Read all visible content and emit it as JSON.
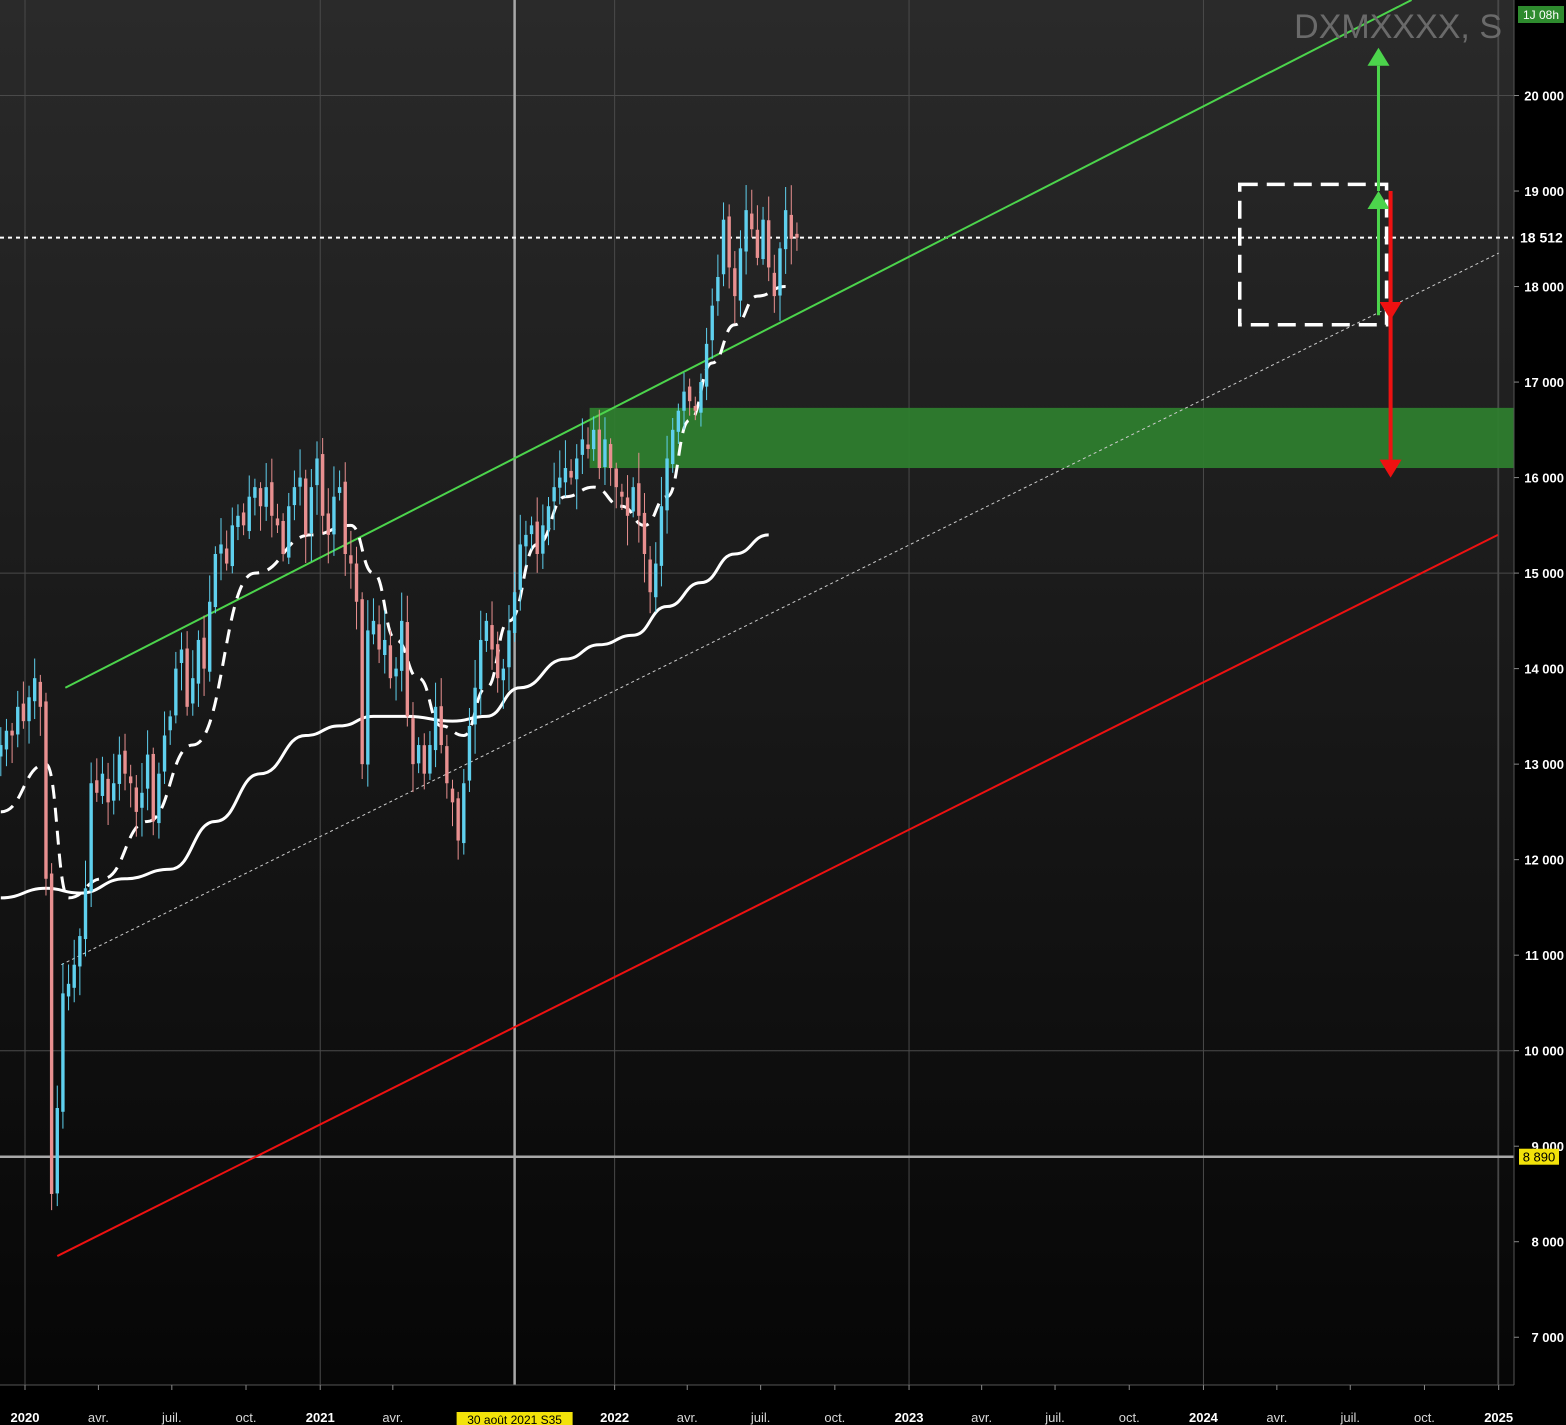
{
  "chart_data": {
    "type": "candlestick",
    "title": "DXMXXXX, S",
    "timeframe_badge": "1J 08h",
    "ylim": [
      6500,
      21000
    ],
    "xlim": [
      "2019-12-01",
      "2025-01-20"
    ],
    "y_ticks": [
      7000,
      8000,
      9000,
      10000,
      11000,
      12000,
      13000,
      14000,
      15000,
      16000,
      17000,
      18000,
      19000,
      20000
    ],
    "y_tick_labels": [
      "7 000",
      "8 000",
      "9 000",
      "10 000",
      "11 000",
      "12 000",
      "13 000",
      "14 000",
      "15 000",
      "16 000",
      "17 000",
      "18 000",
      "19 000",
      "20 000"
    ],
    "x_ticks": [
      {
        "date": "2020-01-01",
        "label": "2020",
        "year": true
      },
      {
        "date": "2020-04-01",
        "label": "avr.",
        "year": false
      },
      {
        "date": "2020-07-01",
        "label": "juil.",
        "year": false
      },
      {
        "date": "2020-10-01",
        "label": "oct.",
        "year": false
      },
      {
        "date": "2021-01-01",
        "label": "2021",
        "year": true
      },
      {
        "date": "2021-04-01",
        "label": "avr.",
        "year": false
      },
      {
        "date": "2022-01-01",
        "label": "2022",
        "year": true
      },
      {
        "date": "2022-04-01",
        "label": "avr.",
        "year": false
      },
      {
        "date": "2022-07-01",
        "label": "juil.",
        "year": false
      },
      {
        "date": "2022-10-01",
        "label": "oct.",
        "year": false
      },
      {
        "date": "2023-01-01",
        "label": "2023",
        "year": true
      },
      {
        "date": "2023-04-01",
        "label": "avr.",
        "year": false
      },
      {
        "date": "2023-07-01",
        "label": "juil.",
        "year": false
      },
      {
        "date": "2023-10-01",
        "label": "oct.",
        "year": false
      },
      {
        "date": "2024-01-01",
        "label": "2024",
        "year": true
      },
      {
        "date": "2024-04-01",
        "label": "avr.",
        "year": false
      },
      {
        "date": "2024-07-01",
        "label": "juil.",
        "year": false
      },
      {
        "date": "2024-10-01",
        "label": "oct.",
        "year": false
      },
      {
        "date": "2025-01-01",
        "label": "2025",
        "year": true
      }
    ],
    "cursor": {
      "date": "2021-08-30",
      "label": "30 août 2021 S35"
    },
    "last_price": {
      "value": 18512,
      "label": "18 512"
    },
    "horizontal_level": {
      "value": 8890,
      "label": "8 890"
    },
    "close_series": [
      13200,
      13350,
      13300,
      13600,
      13450,
      13700,
      13900,
      13600,
      11800,
      8500,
      9400,
      10600,
      10700,
      10900,
      11200,
      11700,
      12800,
      12700,
      12900,
      12600,
      12800,
      13100,
      12900,
      12800,
      12500,
      12700,
      13100,
      12400,
      12900,
      13300,
      13500,
      14000,
      14200,
      13600,
      13900,
      14300,
      14000,
      14700,
      15200,
      15300,
      15100,
      15500,
      15600,
      15500,
      15800,
      15900,
      15700,
      15900,
      15600,
      15500,
      15200,
      15700,
      15900,
      16000,
      15400,
      15900,
      16200,
      15600,
      15400,
      15800,
      15900,
      15200,
      15100,
      14700,
      13000,
      14400,
      14500,
      14200,
      14300,
      13900,
      14000,
      14500,
      13500,
      13000,
      13200,
      12900,
      13200,
      13600,
      13200,
      12800,
      12600,
      12200,
      12800,
      13400,
      13800,
      14300,
      14500,
      14200,
      13900,
      14000,
      14400,
      14800,
      15300,
      15400,
      15500,
      15200,
      15500,
      15700,
      15900,
      16000,
      16100,
      16000,
      16200,
      16400,
      16300,
      16500,
      16100,
      16400,
      16100,
      15900,
      15800,
      15600,
      15900,
      15600,
      15200,
      14800,
      15100,
      15700,
      16200,
      16500,
      16700,
      16900,
      16800,
      16700,
      17000,
      17400,
      17800,
      18100,
      18700,
      18200,
      17900,
      18400,
      18800,
      18600,
      18300,
      18700,
      18200,
      17900,
      18400,
      18800,
      18500,
      18512
    ],
    "series": [
      {
        "name": "",
        "type": "moving_average_dashed",
        "points": [
          [
            0,
            12500
          ],
          [
            8,
            13000
          ],
          [
            12,
            11600
          ],
          [
            18,
            11800
          ],
          [
            26,
            12400
          ],
          [
            34,
            13200
          ],
          [
            45,
            15000
          ],
          [
            55,
            15400
          ],
          [
            62,
            15500
          ],
          [
            66,
            15000
          ],
          [
            70,
            14300
          ],
          [
            74,
            13900
          ],
          [
            78,
            13400
          ],
          [
            82,
            13300
          ],
          [
            86,
            13800
          ],
          [
            90,
            14500
          ],
          [
            95,
            15300
          ],
          [
            100,
            15800
          ],
          [
            105,
            15900
          ],
          [
            110,
            15700
          ],
          [
            114,
            15500
          ],
          [
            118,
            15800
          ],
          [
            122,
            16600
          ],
          [
            126,
            17200
          ],
          [
            130,
            17600
          ],
          [
            134,
            17900
          ],
          [
            139,
            18000
          ]
        ]
      },
      {
        "name": "",
        "type": "moving_average_solid",
        "points": [
          [
            0,
            11600
          ],
          [
            8,
            11700
          ],
          [
            14,
            11650
          ],
          [
            22,
            11800
          ],
          [
            30,
            11900
          ],
          [
            38,
            12400
          ],
          [
            46,
            12900
          ],
          [
            54,
            13300
          ],
          [
            60,
            13400
          ],
          [
            66,
            13500
          ],
          [
            72,
            13500
          ],
          [
            80,
            13450
          ],
          [
            86,
            13500
          ],
          [
            92,
            13800
          ],
          [
            100,
            14100
          ],
          [
            106,
            14250
          ],
          [
            112,
            14350
          ],
          [
            118,
            14650
          ],
          [
            124,
            14900
          ],
          [
            130,
            15200
          ],
          [
            136,
            15400
          ]
        ]
      }
    ],
    "annotations": [
      {
        "type": "trendline",
        "color": "#4cd44c",
        "from": [
          "2020-02-20",
          13800
        ],
        "to": [
          "2024-09-15",
          21000
        ]
      },
      {
        "type": "trendline",
        "color": "#ee1111",
        "from": [
          "2020-02-10",
          7850
        ],
        "to": [
          "2024-12-31",
          15400
        ]
      },
      {
        "type": "trendline_dotted",
        "color": "#cccccc",
        "from": [
          "2020-02-15",
          10900
        ],
        "to": [
          "2025-01-01",
          18350
        ]
      },
      {
        "type": "zone",
        "color": "#2e7d2e",
        "from": "2021-12-01",
        "to": "2025-01-20",
        "y_range": [
          16100,
          16730
        ]
      },
      {
        "type": "box_dashed",
        "color": "#ffffff",
        "from": "2024-02-15",
        "to": "2024-08-15",
        "y_range": [
          17600,
          19070
        ]
      },
      {
        "type": "arrow",
        "color": "#4cd44c",
        "date": "2024-08-05",
        "from": 17700,
        "to": 19000
      },
      {
        "type": "arrow",
        "color": "#4cd44c",
        "date": "2024-08-05",
        "from": 19000,
        "to": 20500
      },
      {
        "type": "arrow",
        "color": "#ee1111",
        "date": "2024-08-20",
        "from": 19000,
        "to": 17650
      },
      {
        "type": "arrow",
        "color": "#ee1111",
        "date": "2024-08-20",
        "from": 17700,
        "to": 16000
      }
    ]
  }
}
